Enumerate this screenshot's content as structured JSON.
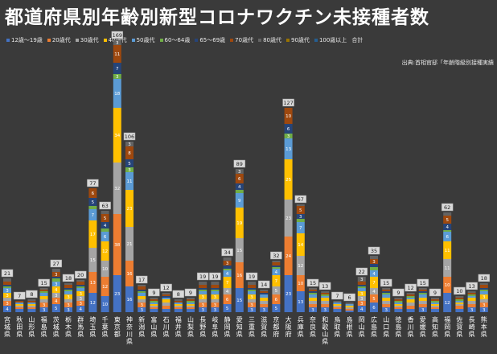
{
  "chart_data": {
    "type": "bar",
    "stacked": true,
    "title": "都道府県別年齢別新型コロナワクチン未接種者数",
    "source": "出典:首相官邸「年齢階級別接種実績",
    "categories": [
      "宮城県",
      "秋田県",
      "山形県",
      "福島県",
      "茨城県",
      "栃木県",
      "群馬県",
      "埼玉県",
      "千葉県",
      "東京都",
      "神奈川県",
      "新潟県",
      "富山県",
      "石川県",
      "福井県",
      "山梨県",
      "長野県",
      "岐阜県",
      "静岡県",
      "愛知県",
      "三重県",
      "滋賀県",
      "京都府",
      "大阪府",
      "兵庫県",
      "奈良県",
      "和歌山県",
      "鳥取県",
      "島根県",
      "岡山県",
      "広島県",
      "山口県",
      "徳島県",
      "香川県",
      "愛媛県",
      "高知県",
      "福岡県",
      "佐賀県",
      "長崎県",
      "熊本県"
    ],
    "totals": [
      21,
      7,
      8,
      15,
      27,
      18,
      20,
      77,
      63,
      169,
      106,
      17,
      9,
      12,
      8,
      9,
      19,
      19,
      34,
      89,
      19,
      14,
      32,
      127,
      67,
      15,
      13,
      7,
      6,
      22,
      35,
      15,
      9,
      12,
      15,
      9,
      62,
      10,
      13,
      18
    ],
    "series": [
      {
        "name": "12歳～19歳",
        "color": "#4472c4",
        "values": [
          4,
          2,
          2,
          3,
          5,
          3,
          4,
          12,
          10,
          23,
          16,
          3,
          2,
          2,
          2,
          2,
          3,
          3,
          5,
          15,
          3,
          3,
          5,
          23,
          13,
          3,
          3,
          2,
          1,
          4,
          6,
          3,
          2,
          2,
          3,
          2,
          12,
          2,
          3,
          3
        ]
      },
      {
        "name": "20歳代",
        "color": "#ed7d31",
        "values": [
          3,
          1,
          1,
          3,
          4,
          3,
          3,
          13,
          12,
          38,
          16,
          3,
          1,
          2,
          1,
          1,
          3,
          3,
          6,
          16,
          3,
          2,
          6,
          24,
          10,
          2,
          2,
          1,
          1,
          3,
          5,
          2,
          1,
          2,
          2,
          1,
          10,
          2,
          2,
          3
        ]
      },
      {
        "name": "30歳代",
        "color": "#a5a5a5",
        "values": [
          2,
          1,
          1,
          2,
          3,
          2,
          3,
          15,
          10,
          32,
          21,
          2,
          1,
          2,
          1,
          1,
          2,
          2,
          4,
          15,
          2,
          2,
          5,
          23,
          12,
          2,
          2,
          1,
          1,
          3,
          4,
          2,
          1,
          2,
          2,
          1,
          11,
          1,
          2,
          2
        ]
      },
      {
        "name": "40歳代",
        "color": "#ffc000",
        "values": [
          3,
          1,
          1,
          2,
          4,
          3,
          3,
          17,
          12,
          34,
          23,
          2,
          1,
          2,
          1,
          1,
          3,
          3,
          7,
          19,
          3,
          2,
          7,
          25,
          14,
          2,
          2,
          1,
          1,
          3,
          7,
          2,
          1,
          2,
          2,
          1,
          11,
          1,
          2,
          3
        ]
      },
      {
        "name": "50歳代",
        "color": "#5b9bd5",
        "values": [
          3,
          1,
          1,
          2,
          3,
          2,
          2,
          7,
          6,
          18,
          11,
          2,
          1,
          1,
          1,
          1,
          2,
          2,
          4,
          9,
          2,
          2,
          4,
          13,
          7,
          2,
          1,
          1,
          1,
          2,
          4,
          2,
          1,
          1,
          2,
          1,
          6,
          1,
          1,
          2
        ]
      },
      {
        "name": "60～64歳",
        "color": "#70ad47",
        "values": [
          1,
          0,
          0,
          1,
          2,
          1,
          1,
          2,
          2,
          3,
          3,
          1,
          1,
          0,
          0,
          1,
          1,
          1,
          1,
          2,
          1,
          0,
          1,
          3,
          2,
          1,
          1,
          0,
          0,
          1,
          2,
          1,
          1,
          1,
          1,
          1,
          1,
          1,
          1,
          1
        ]
      },
      {
        "name": "65～69歳",
        "color": "#264478",
        "values": [
          1,
          0,
          0,
          0,
          1,
          1,
          1,
          5,
          4,
          7,
          5,
          1,
          0,
          1,
          0,
          0,
          1,
          1,
          2,
          4,
          1,
          1,
          1,
          6,
          3,
          1,
          0,
          0,
          0,
          1,
          2,
          1,
          0,
          0,
          1,
          0,
          4,
          0,
          0,
          1
        ]
      },
      {
        "name": "70歳代",
        "color": "#9e480e",
        "values": [
          2,
          1,
          1,
          1,
          3,
          2,
          2,
          6,
          5,
          11,
          8,
          2,
          1,
          1,
          1,
          1,
          2,
          2,
          3,
          6,
          2,
          1,
          2,
          10,
          5,
          1,
          1,
          0,
          0,
          2,
          3,
          1,
          1,
          1,
          1,
          1,
          5,
          1,
          1,
          2
        ]
      },
      {
        "name": "80歳代",
        "color": "#636363",
        "values": [
          2,
          0,
          1,
          1,
          2,
          1,
          1,
          0,
          2,
          3,
          3,
          1,
          1,
          1,
          1,
          1,
          2,
          2,
          2,
          3,
          2,
          1,
          1,
          0,
          1,
          1,
          1,
          1,
          1,
          3,
          2,
          1,
          1,
          1,
          1,
          1,
          2,
          1,
          1,
          1
        ]
      },
      {
        "name": "90歳代",
        "color": "#997300",
        "values": [
          0,
          0,
          0,
          0,
          0,
          0,
          0,
          0,
          0,
          0,
          0,
          0,
          0,
          0,
          0,
          0,
          0,
          0,
          0,
          0,
          0,
          0,
          0,
          0,
          0,
          0,
          0,
          0,
          0,
          0,
          0,
          0,
          0,
          0,
          0,
          0,
          0,
          0,
          0,
          0
        ]
      },
      {
        "name": "100歳以上",
        "color": "#255e91",
        "values": [
          0,
          0,
          0,
          0,
          0,
          0,
          0,
          0,
          0,
          0,
          0,
          0,
          0,
          0,
          0,
          0,
          0,
          0,
          0,
          0,
          0,
          0,
          0,
          0,
          0,
          0,
          0,
          0,
          0,
          0,
          0,
          0,
          0,
          0,
          0,
          0,
          0,
          0,
          0,
          0
        ]
      }
    ],
    "total_label": "合計",
    "legend_position": "top",
    "grid": false,
    "ylim": [
      0,
      175
    ]
  }
}
